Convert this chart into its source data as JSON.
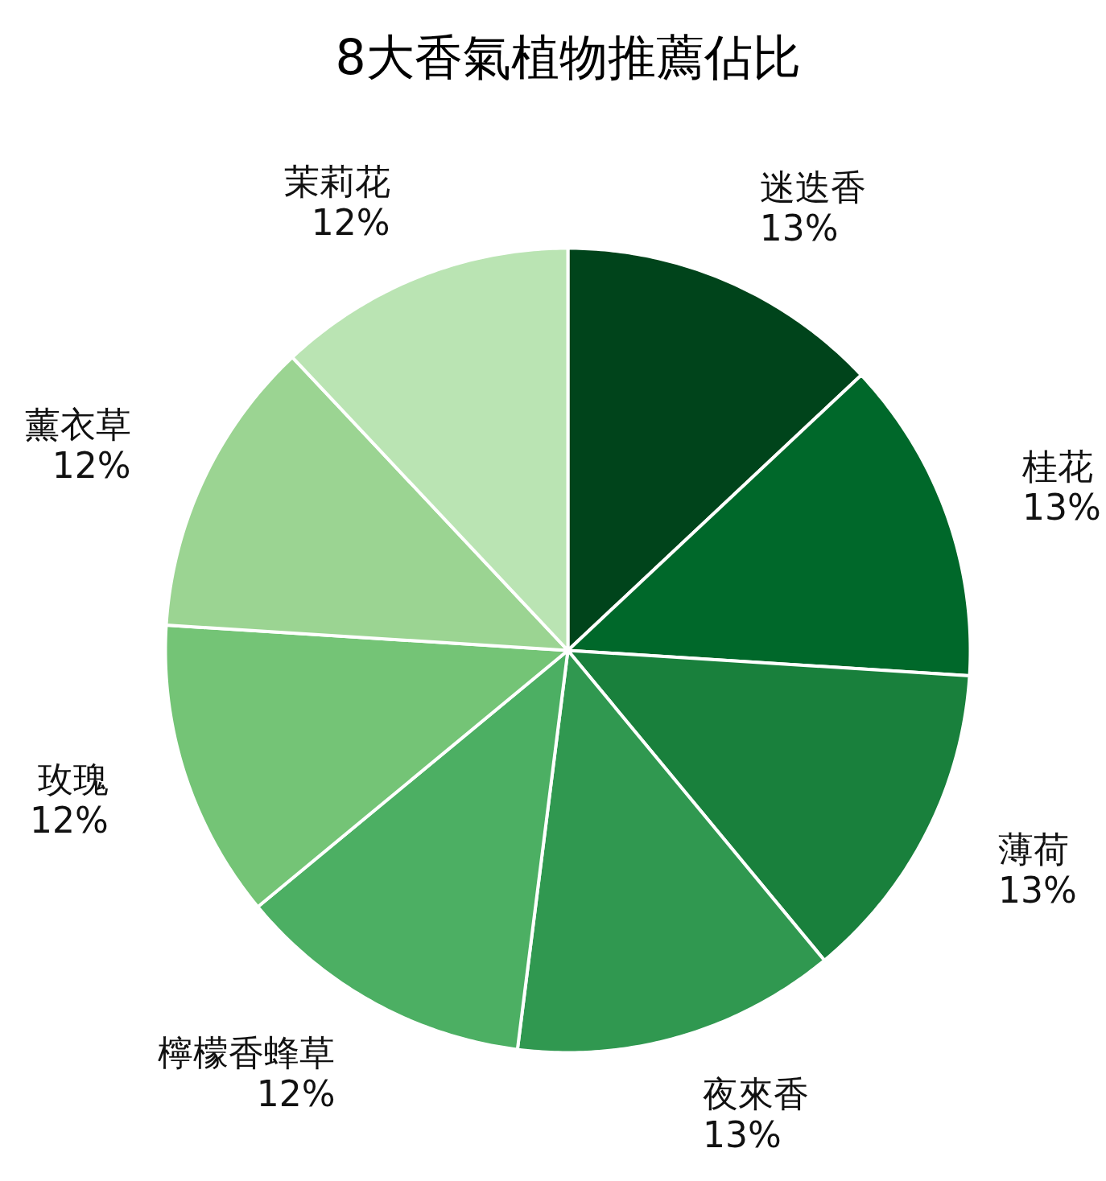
{
  "chart_data": {
    "type": "pie",
    "title": "8大香氣植物推薦佔比",
    "categories": [
      "迷迭香",
      "桂花",
      "薄荷",
      "夜來香",
      "檸檬香蜂草",
      "玫瑰",
      "薰衣草",
      "茉莉花"
    ],
    "values": [
      13,
      13,
      13,
      13,
      12,
      12,
      12,
      12
    ],
    "value_labels": [
      "13%",
      "13%",
      "13%",
      "13%",
      "12%",
      "12%",
      "12%",
      "12%"
    ],
    "colors": [
      "#00441b",
      "#00682a",
      "#19803c",
      "#309850",
      "#4caf63",
      "#74c476",
      "#9bd492",
      "#bae4b3"
    ]
  }
}
